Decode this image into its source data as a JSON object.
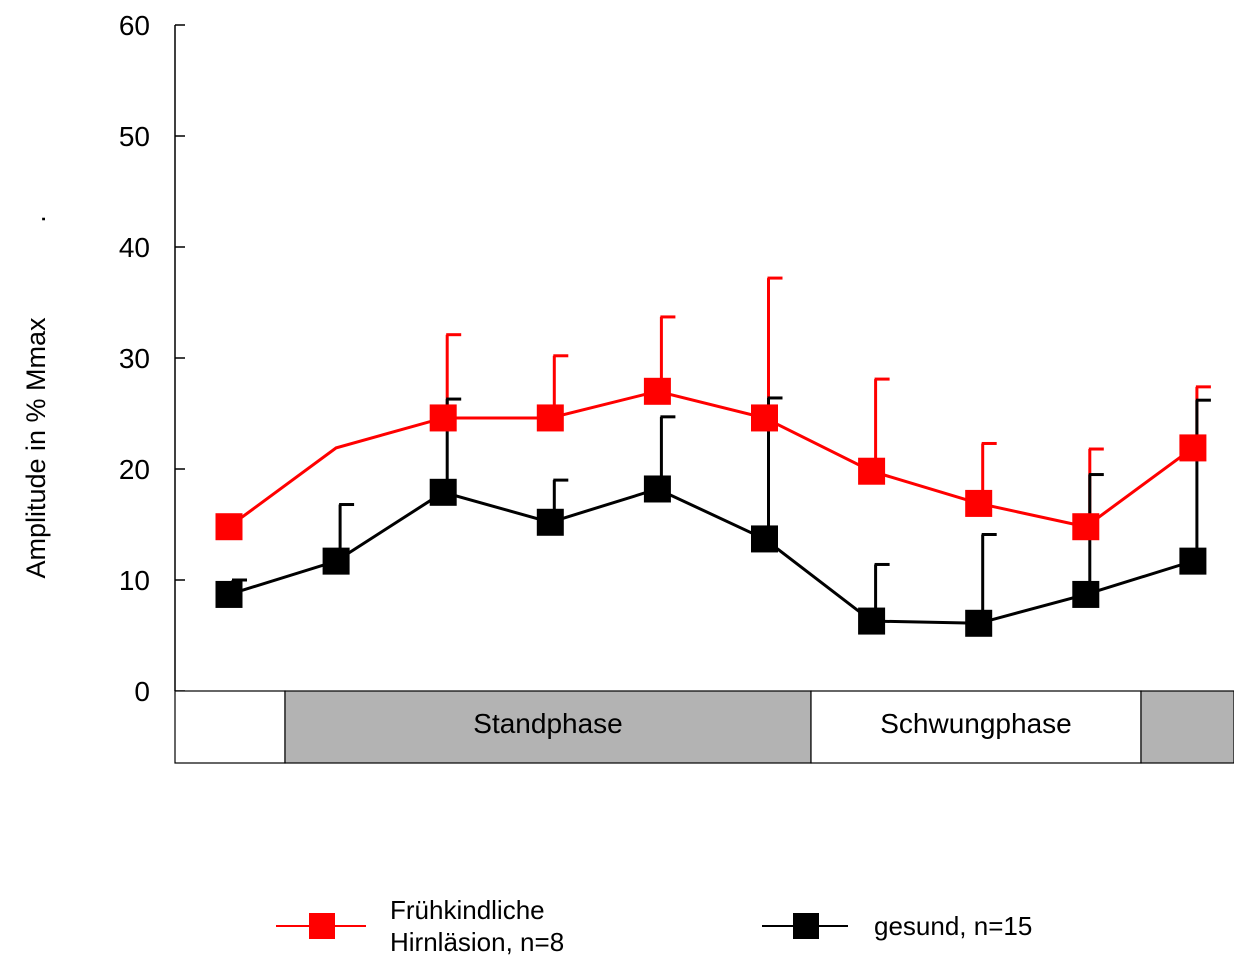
{
  "chart_data": {
    "type": "line",
    "title": "",
    "xlabel": "",
    "ylabel": "Amplitude in % Mmax",
    "ylabel_trailing_mark": ".",
    "ylim": [
      0,
      60
    ],
    "y_ticks": [
      "0",
      "10",
      "20",
      "30",
      "40",
      "50",
      "60"
    ],
    "x": [
      1,
      2,
      3,
      4,
      5,
      6,
      7,
      8,
      9,
      10
    ],
    "error_bars": "positive (upward) only",
    "series": [
      {
        "name": "Frühkindliche Hirnläsion, n=8",
        "color": "#ff0000",
        "marker": "square",
        "x": [
          1,
          2,
          3,
          4,
          5,
          6,
          7,
          8,
          9,
          10
        ],
        "values": [
          14.8,
          21.9,
          24.6,
          24.6,
          27.0,
          24.6,
          19.8,
          16.9,
          14.8,
          21.9
        ],
        "marker_shown": [
          true,
          false,
          true,
          true,
          true,
          true,
          true,
          true,
          true,
          true
        ],
        "error_upper": [
          null,
          null,
          32.1,
          30.2,
          33.7,
          37.2,
          28.1,
          22.3,
          21.8,
          27.4
        ]
      },
      {
        "name": "gesund, n=15",
        "color": "#000000",
        "marker": "square",
        "x": [
          1,
          2,
          3,
          4,
          5,
          6,
          7,
          8,
          9,
          10
        ],
        "values": [
          8.7,
          11.7,
          17.9,
          15.2,
          18.2,
          13.7,
          6.3,
          6.1,
          8.7,
          11.7
        ],
        "marker_shown": [
          true,
          true,
          true,
          true,
          true,
          true,
          true,
          true,
          true,
          true
        ],
        "error_upper": [
          10.0,
          16.8,
          26.3,
          19.0,
          24.7,
          26.4,
          11.4,
          14.1,
          19.5,
          26.2
        ]
      }
    ],
    "phase_bar": [
      {
        "label": "",
        "fill": "#ffffff"
      },
      {
        "label": "Standphase",
        "fill": "#b3b3b3"
      },
      {
        "label": "Schwungphase",
        "fill": "#ffffff"
      },
      {
        "label": "",
        "fill": "#b3b3b3"
      }
    ],
    "legend": {
      "placement": "bottom",
      "items": [
        {
          "label_line1": "Frühkindliche",
          "label_line2": "Hirnläsion, n=8",
          "color": "#ff0000"
        },
        {
          "label_line1": "gesund, n=15",
          "label_line2": "",
          "color": "#000000"
        }
      ]
    },
    "grid": false
  }
}
